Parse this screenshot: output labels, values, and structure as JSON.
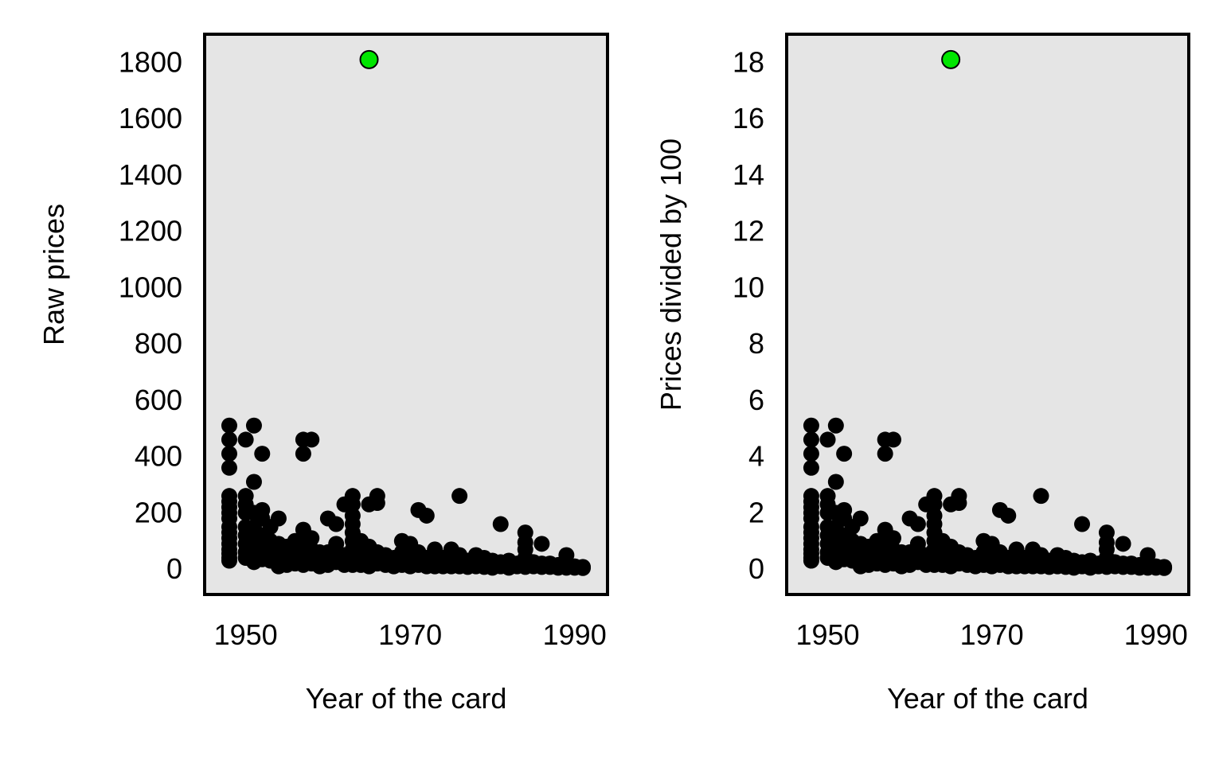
{
  "chart_data": [
    {
      "type": "scatter",
      "xlabel": "Year of the card",
      "ylabel": "Raw prices",
      "xlim": [
        1945,
        1994
      ],
      "ylim": [
        -90,
        1900
      ],
      "xticks": [
        1950,
        1970,
        1990
      ],
      "yticks": [
        0,
        200,
        400,
        600,
        800,
        1000,
        1200,
        1400,
        1600,
        1800
      ],
      "background": "#e5e5e5",
      "point_color": "#000000",
      "highlight_color": "#00e600",
      "grid": false,
      "series": [
        {
          "values": [
            [
              1948,
              510
            ],
            [
              1948,
              460
            ],
            [
              1948,
              410
            ],
            [
              1948,
              360
            ],
            [
              1948,
              260
            ],
            [
              1948,
              240
            ],
            [
              1948,
              220
            ],
            [
              1948,
              200
            ],
            [
              1948,
              180
            ],
            [
              1948,
              150
            ],
            [
              1948,
              130
            ],
            [
              1948,
              110
            ],
            [
              1948,
              90
            ],
            [
              1948,
              70
            ],
            [
              1948,
              55
            ],
            [
              1948,
              40
            ],
            [
              1948,
              30
            ],
            [
              1950,
              460
            ],
            [
              1950,
              260
            ],
            [
              1950,
              230
            ],
            [
              1950,
              200
            ],
            [
              1950,
              150
            ],
            [
              1950,
              120
            ],
            [
              1950,
              90
            ],
            [
              1950,
              60
            ],
            [
              1950,
              40
            ],
            [
              1951,
              510
            ],
            [
              1951,
              310
            ],
            [
              1951,
              200
            ],
            [
              1951,
              150
            ],
            [
              1951,
              100
            ],
            [
              1951,
              70
            ],
            [
              1951,
              45
            ],
            [
              1951,
              25
            ],
            [
              1952,
              410
            ],
            [
              1952,
              210
            ],
            [
              1952,
              180
            ],
            [
              1952,
              120
            ],
            [
              1952,
              90
            ],
            [
              1952,
              60
            ],
            [
              1952,
              35
            ],
            [
              1953,
              150
            ],
            [
              1953,
              100
            ],
            [
              1953,
              70
            ],
            [
              1953,
              50
            ],
            [
              1953,
              30
            ],
            [
              1954,
              180
            ],
            [
              1954,
              90
            ],
            [
              1954,
              60
            ],
            [
              1954,
              40
            ],
            [
              1954,
              20
            ],
            [
              1954,
              10
            ],
            [
              1955,
              80
            ],
            [
              1955,
              50
            ],
            [
              1955,
              30
            ],
            [
              1955,
              15
            ],
            [
              1956,
              100
            ],
            [
              1956,
              60
            ],
            [
              1956,
              40
            ],
            [
              1956,
              20
            ],
            [
              1957,
              460
            ],
            [
              1957,
              410
            ],
            [
              1957,
              140
            ],
            [
              1957,
              90
            ],
            [
              1957,
              60
            ],
            [
              1957,
              30
            ],
            [
              1957,
              15
            ],
            [
              1958,
              460
            ],
            [
              1958,
              110
            ],
            [
              1958,
              70
            ],
            [
              1958,
              40
            ],
            [
              1958,
              20
            ],
            [
              1959,
              60
            ],
            [
              1959,
              40
            ],
            [
              1959,
              20
            ],
            [
              1959,
              10
            ],
            [
              1960,
              180
            ],
            [
              1960,
              60
            ],
            [
              1960,
              30
            ],
            [
              1960,
              15
            ],
            [
              1961,
              160
            ],
            [
              1961,
              90
            ],
            [
              1961,
              50
            ],
            [
              1961,
              25
            ],
            [
              1962,
              230
            ],
            [
              1962,
              50
            ],
            [
              1962,
              30
            ],
            [
              1962,
              15
            ],
            [
              1963,
              260
            ],
            [
              1963,
              230
            ],
            [
              1963,
              190
            ],
            [
              1963,
              160
            ],
            [
              1963,
              130
            ],
            [
              1963,
              100
            ],
            [
              1963,
              70
            ],
            [
              1963,
              50
            ],
            [
              1963,
              30
            ],
            [
              1963,
              15
            ],
            [
              1964,
              100
            ],
            [
              1964,
              60
            ],
            [
              1964,
              35
            ],
            [
              1964,
              15
            ],
            [
              1965,
              230
            ],
            [
              1965,
              80
            ],
            [
              1965,
              50
            ],
            [
              1965,
              25
            ],
            [
              1965,
              10
            ],
            [
              1966,
              260
            ],
            [
              1966,
              235
            ],
            [
              1966,
              60
            ],
            [
              1966,
              40
            ],
            [
              1966,
              20
            ],
            [
              1967,
              50
            ],
            [
              1967,
              30
            ],
            [
              1967,
              15
            ],
            [
              1968,
              40
            ],
            [
              1968,
              20
            ],
            [
              1968,
              10
            ],
            [
              1969,
              100
            ],
            [
              1969,
              60
            ],
            [
              1969,
              30
            ],
            [
              1969,
              15
            ],
            [
              1970,
              90
            ],
            [
              1970,
              50
            ],
            [
              1970,
              25
            ],
            [
              1970,
              10
            ],
            [
              1971,
              210
            ],
            [
              1971,
              60
            ],
            [
              1971,
              35
            ],
            [
              1971,
              15
            ],
            [
              1972,
              190
            ],
            [
              1972,
              40
            ],
            [
              1972,
              20
            ],
            [
              1972,
              10
            ],
            [
              1973,
              70
            ],
            [
              1973,
              45
            ],
            [
              1973,
              25
            ],
            [
              1973,
              10
            ],
            [
              1974,
              40
            ],
            [
              1974,
              20
            ],
            [
              1974,
              10
            ],
            [
              1975,
              70
            ],
            [
              1975,
              40
            ],
            [
              1975,
              20
            ],
            [
              1975,
              10
            ],
            [
              1976,
              260
            ],
            [
              1976,
              50
            ],
            [
              1976,
              25
            ],
            [
              1976,
              10
            ],
            [
              1977,
              30
            ],
            [
              1977,
              15
            ],
            [
              1977,
              8
            ],
            [
              1978,
              50
            ],
            [
              1978,
              25
            ],
            [
              1978,
              10
            ],
            [
              1979,
              40
            ],
            [
              1979,
              20
            ],
            [
              1979,
              8
            ],
            [
              1980,
              30
            ],
            [
              1980,
              15
            ],
            [
              1980,
              5
            ],
            [
              1981,
              160
            ],
            [
              1981,
              25
            ],
            [
              1981,
              10
            ],
            [
              1982,
              30
            ],
            [
              1982,
              15
            ],
            [
              1982,
              5
            ],
            [
              1983,
              20
            ],
            [
              1983,
              10
            ],
            [
              1984,
              130
            ],
            [
              1984,
              95
            ],
            [
              1984,
              70
            ],
            [
              1984,
              40
            ],
            [
              1984,
              20
            ],
            [
              1984,
              8
            ],
            [
              1985,
              25
            ],
            [
              1985,
              10
            ],
            [
              1986,
              90
            ],
            [
              1986,
              20
            ],
            [
              1986,
              8
            ],
            [
              1987,
              20
            ],
            [
              1987,
              8
            ],
            [
              1988,
              15
            ],
            [
              1988,
              5
            ],
            [
              1989,
              50
            ],
            [
              1989,
              15
            ],
            [
              1989,
              5
            ],
            [
              1990,
              10
            ],
            [
              1990,
              5
            ],
            [
              1991,
              8
            ],
            [
              1991,
              4
            ]
          ]
        }
      ],
      "highlight": [
        1965,
        1810
      ]
    },
    {
      "type": "scatter",
      "xlabel": "Year of the card",
      "ylabel": "Prices divided by 100",
      "xlim": [
        1945,
        1994
      ],
      "ylim": [
        -0.9,
        19.0
      ],
      "xticks": [
        1950,
        1970,
        1990
      ],
      "yticks": [
        0,
        2,
        4,
        6,
        8,
        10,
        12,
        14,
        16,
        18
      ],
      "background": "#e5e5e5",
      "point_color": "#000000",
      "highlight_color": "#00e600",
      "grid": false,
      "scale_divisor": 100,
      "highlight": [
        1965,
        18.1
      ]
    }
  ]
}
